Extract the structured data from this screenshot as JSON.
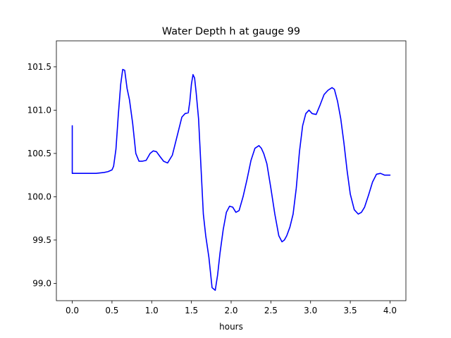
{
  "chart_data": {
    "type": "line",
    "title": "Water Depth h at gauge 99",
    "xlabel": "hours",
    "ylabel": "",
    "xlim": [
      -0.2,
      4.2
    ],
    "ylim": [
      98.8,
      101.8
    ],
    "xticks": [
      0.0,
      0.5,
      1.0,
      1.5,
      2.0,
      2.5,
      3.0,
      3.5,
      4.0
    ],
    "xtick_labels": [
      "0.0",
      "0.5",
      "1.0",
      "1.5",
      "2.0",
      "2.5",
      "3.0",
      "3.5",
      "4.0"
    ],
    "yticks": [
      99.0,
      99.5,
      100.0,
      100.5,
      101.0,
      101.5
    ],
    "ytick_labels": [
      "99.0",
      "99.5",
      "100.0",
      "100.5",
      "101.0",
      "101.5"
    ],
    "grid": false,
    "series": [
      {
        "color": "#0000ff",
        "x": [
          0.0,
          0.0,
          0.1,
          0.2,
          0.3,
          0.4,
          0.45,
          0.5,
          0.52,
          0.55,
          0.58,
          0.61,
          0.635,
          0.66,
          0.69,
          0.72,
          0.76,
          0.8,
          0.84,
          0.88,
          0.93,
          0.98,
          1.02,
          1.06,
          1.1,
          1.15,
          1.2,
          1.26,
          1.32,
          1.38,
          1.42,
          1.46,
          1.48,
          1.5,
          1.52,
          1.54,
          1.56,
          1.59,
          1.62,
          1.65,
          1.68,
          1.72,
          1.76,
          1.8,
          1.83,
          1.86,
          1.9,
          1.94,
          1.98,
          2.02,
          2.06,
          2.1,
          2.15,
          2.2,
          2.25,
          2.3,
          2.35,
          2.38,
          2.41,
          2.45,
          2.5,
          2.55,
          2.6,
          2.64,
          2.67,
          2.7,
          2.74,
          2.78,
          2.82,
          2.86,
          2.9,
          2.94,
          2.98,
          3.02,
          3.07,
          3.12,
          3.17,
          3.22,
          3.27,
          3.3,
          3.34,
          3.38,
          3.42,
          3.46,
          3.5,
          3.55,
          3.6,
          3.64,
          3.68,
          3.73,
          3.78,
          3.83,
          3.88,
          3.93,
          3.97,
          4.0
        ],
        "values": [
          100.82,
          100.27,
          100.27,
          100.27,
          100.27,
          100.28,
          100.29,
          100.31,
          100.35,
          100.55,
          100.95,
          101.3,
          101.47,
          101.46,
          101.25,
          101.12,
          100.85,
          100.5,
          100.41,
          100.41,
          100.42,
          100.5,
          100.53,
          100.52,
          100.47,
          100.41,
          100.39,
          100.48,
          100.7,
          100.92,
          100.96,
          100.97,
          101.1,
          101.3,
          101.41,
          101.37,
          101.2,
          100.9,
          100.35,
          99.8,
          99.55,
          99.3,
          98.95,
          98.92,
          99.1,
          99.35,
          99.62,
          99.82,
          99.89,
          99.88,
          99.82,
          99.84,
          100.0,
          100.2,
          100.42,
          100.56,
          100.59,
          100.56,
          100.5,
          100.38,
          100.1,
          99.8,
          99.55,
          99.48,
          99.5,
          99.55,
          99.65,
          99.8,
          100.1,
          100.52,
          100.82,
          100.96,
          101.0,
          100.96,
          100.95,
          101.06,
          101.18,
          101.23,
          101.26,
          101.24,
          101.1,
          100.9,
          100.62,
          100.3,
          100.03,
          99.85,
          99.8,
          99.82,
          99.88,
          100.02,
          100.17,
          100.26,
          100.27,
          100.25,
          100.25,
          100.25
        ]
      }
    ]
  }
}
